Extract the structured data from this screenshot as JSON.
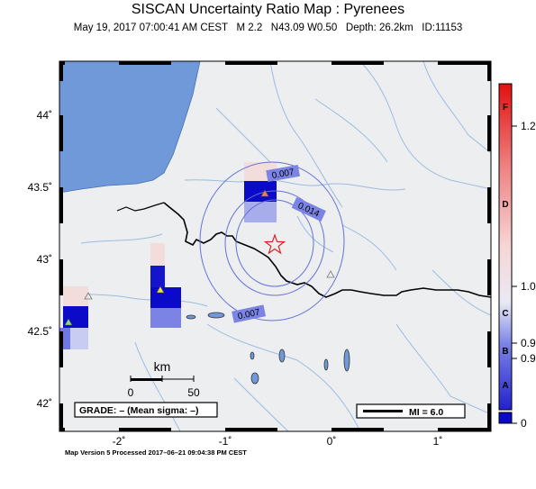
{
  "header": {
    "title": "SISCAN Uncertainty Ratio Map : Pyrenees",
    "subtitle": "May 19, 2017 07:00:41 AM CEST   M 2.2   N43.09 W0.50   Depth: 26.2km   ID:11153"
  },
  "map": {
    "lat_ticks": [
      "44˚",
      "43.5˚",
      "43˚",
      "42.5˚",
      "42˚"
    ],
    "lon_ticks": [
      "-2˚",
      "-1˚",
      "0˚",
      "1˚"
    ],
    "contour_labels": [
      "0.007",
      "0.014",
      "0.007"
    ],
    "scale_bar": {
      "unit": "km",
      "start": "0",
      "end": "50"
    },
    "grade_box": "GRADE: – (Mean sigma: –)",
    "mi_box": "MI = 6.0",
    "epicenter": {
      "lat": 43.09,
      "lon": -0.5
    },
    "colors": {
      "sea": "#6f99d9",
      "land": "#eceef0",
      "rivers": "#9dbbe0",
      "star": "#e02020"
    }
  },
  "colorbar": {
    "letters": [
      "F",
      "D",
      "C",
      "B",
      "A"
    ],
    "values": [
      "1.2",
      "1.0",
      "0.9",
      "0.9",
      "0"
    ]
  },
  "footer": "Map Version 5 Processed 2017–06–21 09:04:38 PM CEST"
}
